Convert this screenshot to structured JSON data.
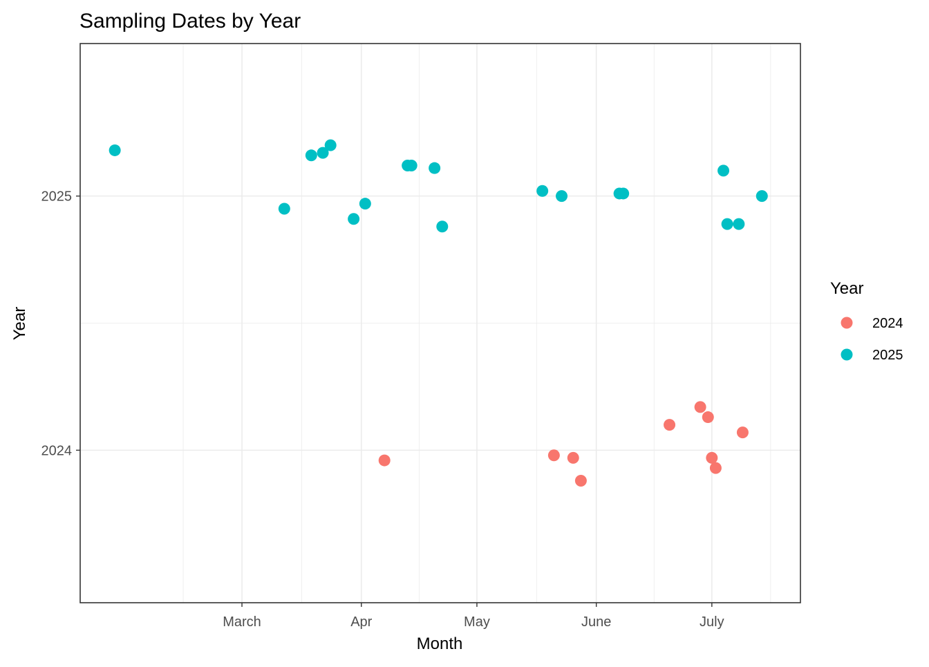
{
  "chart_data": {
    "type": "scatter",
    "title": "Sampling Dates by Year",
    "xlabel": "Month",
    "ylabel": "Year",
    "x_tick_labels": [
      {
        "label": "March",
        "date": "2025-03-01"
      },
      {
        "label": "Apr",
        "date": "2025-04-01"
      },
      {
        "label": "May",
        "date": "2025-05-01"
      },
      {
        "label": "June",
        "date": "2025-06-01"
      },
      {
        "label": "July",
        "date": "2025-07-01"
      }
    ],
    "y_ticks": [
      2024,
      2025
    ],
    "xlim": [
      "2025-01-18",
      "2025-07-24"
    ],
    "ylim": [
      2023.4,
      2025.6
    ],
    "grid": true,
    "jitter": true,
    "legend": {
      "title": "Year",
      "position": "right",
      "entries": [
        {
          "label": "2024",
          "color": "#F8766D"
        },
        {
          "label": "2025",
          "color": "#00BFC4"
        }
      ]
    },
    "series": [
      {
        "name": "2024",
        "color": "#F8766D",
        "points": [
          {
            "x": "2025-04-07",
            "y": 2023.96
          },
          {
            "x": "2025-05-21",
            "y": 2023.98
          },
          {
            "x": "2025-05-26",
            "y": 2023.97
          },
          {
            "x": "2025-05-28",
            "y": 2023.88
          },
          {
            "x": "2025-06-20",
            "y": 2024.1
          },
          {
            "x": "2025-06-28",
            "y": 2024.17
          },
          {
            "x": "2025-06-30",
            "y": 2024.13
          },
          {
            "x": "2025-07-01",
            "y": 2023.97
          },
          {
            "x": "2025-07-02",
            "y": 2023.93
          },
          {
            "x": "2025-07-09",
            "y": 2024.07
          }
        ]
      },
      {
        "name": "2025",
        "color": "#00BFC4",
        "points": [
          {
            "x": "2025-01-27",
            "y": 2025.18
          },
          {
            "x": "2025-03-12",
            "y": 2024.95
          },
          {
            "x": "2025-03-19",
            "y": 2025.16
          },
          {
            "x": "2025-03-22",
            "y": 2025.17
          },
          {
            "x": "2025-03-24",
            "y": 2025.2
          },
          {
            "x": "2025-03-30",
            "y": 2024.91
          },
          {
            "x": "2025-04-02",
            "y": 2024.97
          },
          {
            "x": "2025-04-13",
            "y": 2025.12
          },
          {
            "x": "2025-04-14",
            "y": 2025.12
          },
          {
            "x": "2025-04-20",
            "y": 2025.11
          },
          {
            "x": "2025-04-22",
            "y": 2024.88
          },
          {
            "x": "2025-05-18",
            "y": 2025.02
          },
          {
            "x": "2025-05-23",
            "y": 2025.0
          },
          {
            "x": "2025-06-07",
            "y": 2025.01
          },
          {
            "x": "2025-06-08",
            "y": 2025.01
          },
          {
            "x": "2025-07-04",
            "y": 2025.1
          },
          {
            "x": "2025-07-05",
            "y": 2024.89
          },
          {
            "x": "2025-07-08",
            "y": 2024.89
          },
          {
            "x": "2025-07-14",
            "y": 2025.0
          }
        ]
      }
    ]
  }
}
